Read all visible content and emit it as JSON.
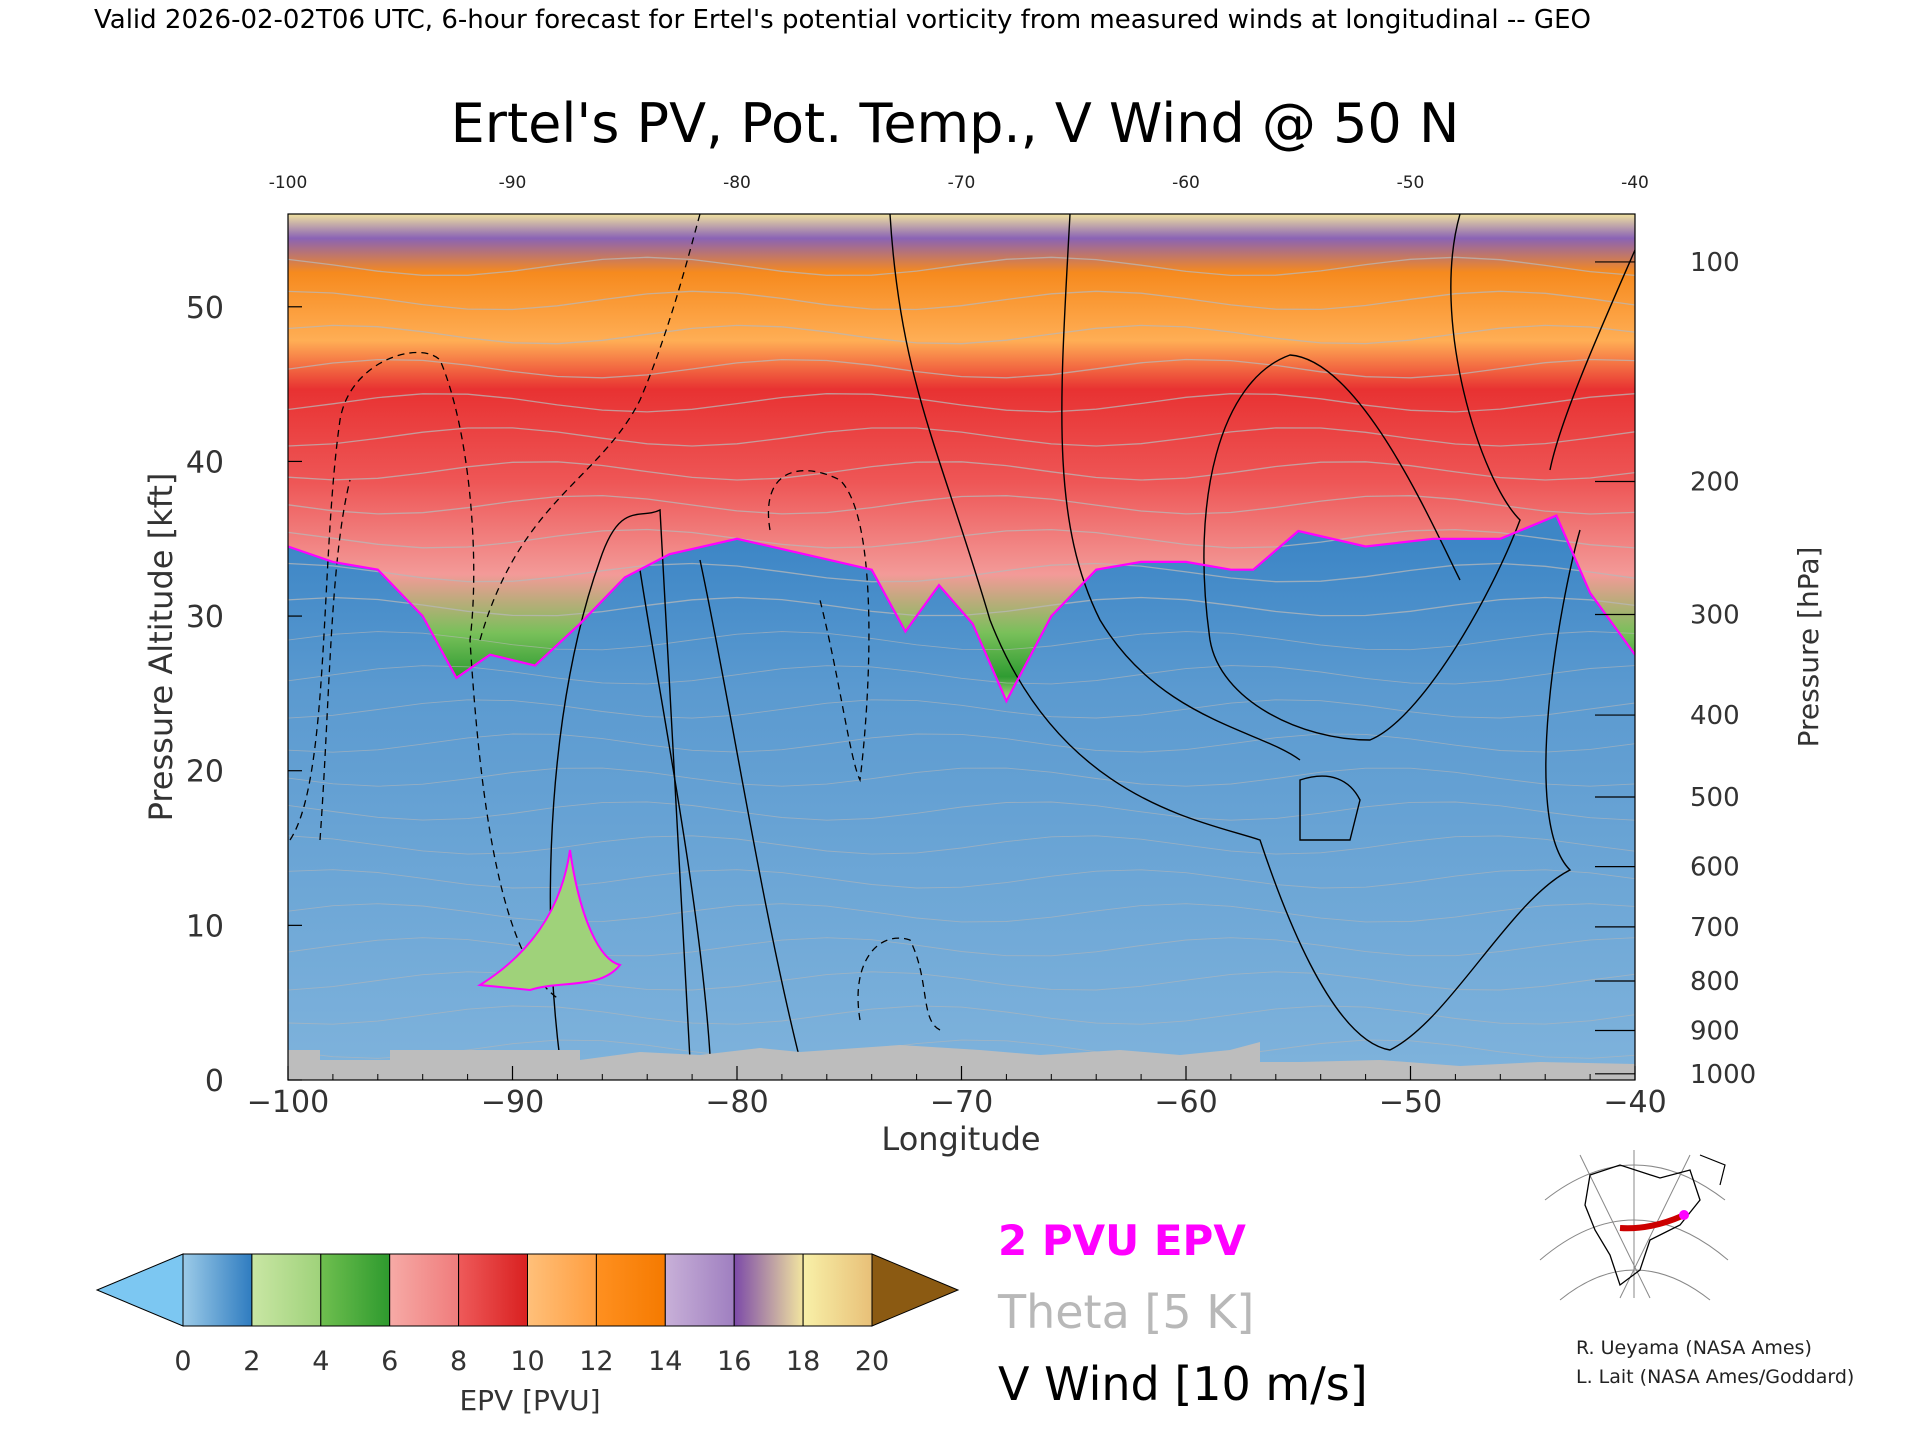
{
  "header": {
    "valid_line": "Valid 2026-02-02T06 UTC, 6-hour forecast for Ertel's potential vorticity from measured winds at longitudinal -- GEO"
  },
  "chart_data": {
    "type": "heatmap",
    "title": "Ertel's PV, Pot. Temp., V Wind @ 50 N",
    "xlabel": "Longitude",
    "ylabel": "Pressure Altitude [kft]",
    "y2label": "Pressure [hPa]",
    "xlim": [
      -100,
      -40
    ],
    "ylim": [
      0,
      56
    ],
    "x_ticks": [
      -100,
      -90,
      -80,
      -70,
      -60,
      -50,
      -40
    ],
    "x_tick_labels": [
      "−100",
      "−90",
      "−80",
      "−70",
      "−60",
      "−50",
      "−40"
    ],
    "top_tick_labels": [
      "-100",
      "-90",
      "-80",
      "-70",
      "-60",
      "-50",
      "-40"
    ],
    "y_ticks": [
      0,
      10,
      20,
      30,
      40,
      50
    ],
    "pressure_ticks": [
      {
        "hpa": "100",
        "kft": 52.9
      },
      {
        "hpa": "200",
        "kft": 38.7
      },
      {
        "hpa": "300",
        "kft": 30.1
      },
      {
        "hpa": "400",
        "kft": 23.6
      },
      {
        "hpa": "500",
        "kft": 18.3
      },
      {
        "hpa": "600",
        "kft": 13.8
      },
      {
        "hpa": "700",
        "kft": 9.9
      },
      {
        "hpa": "800",
        "kft": 6.4
      },
      {
        "hpa": "900",
        "kft": 3.2
      },
      {
        "hpa": "1000",
        "kft": 0.4
      }
    ],
    "tropopause_2pvu_kft": [
      [
        -100,
        34.5
      ],
      [
        -98,
        33.5
      ],
      [
        -96,
        33.0
      ],
      [
        -94,
        30.0
      ],
      [
        -92.5,
        26.0
      ],
      [
        -91,
        27.5
      ],
      [
        -89,
        26.8
      ],
      [
        -87,
        29.5
      ],
      [
        -85,
        32.5
      ],
      [
        -83,
        34.0
      ],
      [
        -80,
        35.0
      ],
      [
        -77,
        34.0
      ],
      [
        -74,
        33.0
      ],
      [
        -72.5,
        29.0
      ],
      [
        -71,
        32.0
      ],
      [
        -69.5,
        29.5
      ],
      [
        -68,
        24.5
      ],
      [
        -66,
        30.0
      ],
      [
        -64,
        33.0
      ],
      [
        -62,
        33.5
      ],
      [
        -60,
        33.5
      ],
      [
        -58,
        33.0
      ],
      [
        -57,
        33.0
      ],
      [
        -55,
        35.5
      ],
      [
        -52,
        34.5
      ],
      [
        -49,
        35.0
      ],
      [
        -46,
        35.0
      ],
      [
        -43.5,
        36.5
      ],
      [
        -42,
        31.5
      ],
      [
        -40,
        27.5
      ]
    ],
    "colorbar": {
      "label": "EPV [PVU]",
      "ticks": [
        "0",
        "2",
        "4",
        "6",
        "8",
        "10",
        "12",
        "14",
        "16",
        "18",
        "20"
      ],
      "bands": [
        {
          "from": 0,
          "to": 2,
          "colors": [
            "#9ccbe8",
            "#2f7cc0"
          ]
        },
        {
          "from": 2,
          "to": 4,
          "colors": [
            "#c9e6a4",
            "#9fd27a"
          ]
        },
        {
          "from": 4,
          "to": 6,
          "colors": [
            "#6fbf4f",
            "#2e9a2e"
          ]
        },
        {
          "from": 6,
          "to": 8,
          "colors": [
            "#f6aaa6",
            "#f07c7c"
          ]
        },
        {
          "from": 8,
          "to": 10,
          "colors": [
            "#ee5a5a",
            "#d92020"
          ]
        },
        {
          "from": 10,
          "to": 12,
          "colors": [
            "#ffc07a",
            "#ff9e40"
          ]
        },
        {
          "from": 12,
          "to": 14,
          "colors": [
            "#ff9020",
            "#f57a00"
          ]
        },
        {
          "from": 14,
          "to": 16,
          "colors": [
            "#c8b0d8",
            "#9f7fc0"
          ]
        },
        {
          "from": 16,
          "to": 18,
          "colors": [
            "#7c4aa8",
            "#f2e5a0"
          ]
        },
        {
          "from": 18,
          "to": 20,
          "colors": [
            "#f8f0a8",
            "#e8c078"
          ]
        }
      ],
      "under_color": "#7cc7f2",
      "over_color": "#8b5a12"
    },
    "legend": {
      "items": [
        {
          "text": "2 PVU EPV",
          "color": "#ff00ff"
        },
        {
          "text": "Theta [5 K]",
          "color": "#b8b8b8"
        },
        {
          "text": "V Wind [10 m/s]",
          "color": "#000000"
        }
      ]
    }
  },
  "credits": {
    "line1": "R. Ueyama (NASA Ames)",
    "line2": "L. Lait (NASA Ames/Goddard)"
  },
  "colors": {
    "tropopause": "#ff00ff",
    "theta": "#b8b8b8",
    "terrain": "#bdbdbd",
    "map_route": "#cc0000"
  },
  "icons": {
    "locator_map": "globe-map-icon"
  }
}
